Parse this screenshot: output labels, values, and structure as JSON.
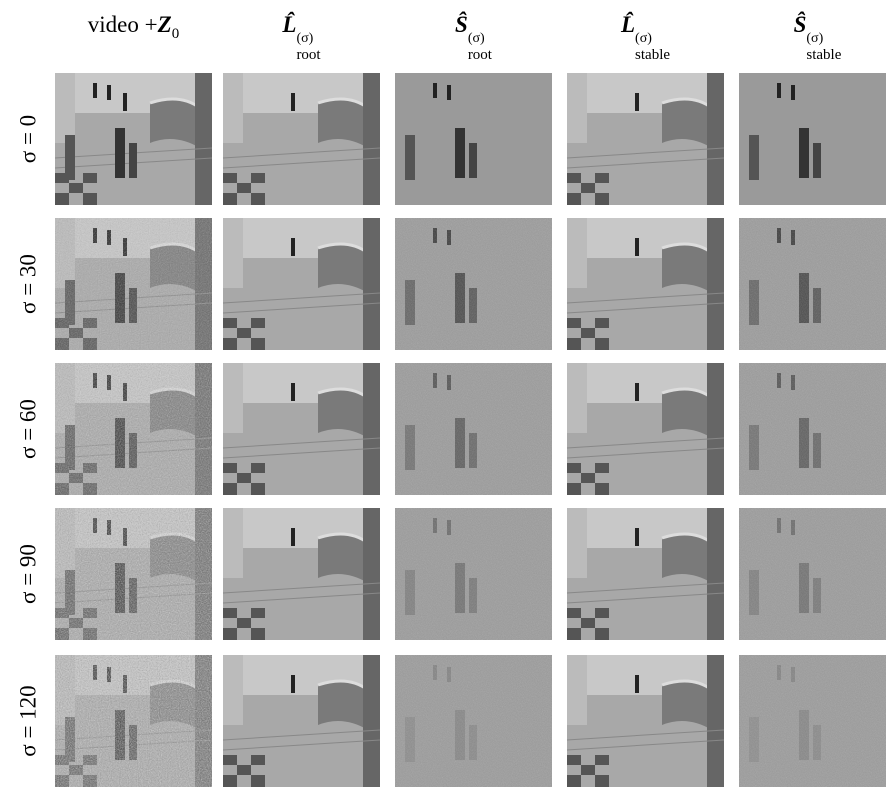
{
  "columns": [
    {
      "text": "video +",
      "symbol": "Z",
      "sub": "0"
    },
    {
      "symbol": "L̂",
      "sup": "(σ)",
      "sub": "root"
    },
    {
      "symbol": "Ŝ",
      "sup": "(σ)",
      "sub": "root"
    },
    {
      "symbol": "L̂",
      "sup": "(σ)",
      "sub": "stable"
    },
    {
      "symbol": "Ŝ",
      "sup": "(σ)",
      "sub": "stable"
    }
  ],
  "rows": [
    "σ = 0",
    "σ = 30",
    "σ = 60",
    "σ = 90",
    "σ = 120"
  ]
}
